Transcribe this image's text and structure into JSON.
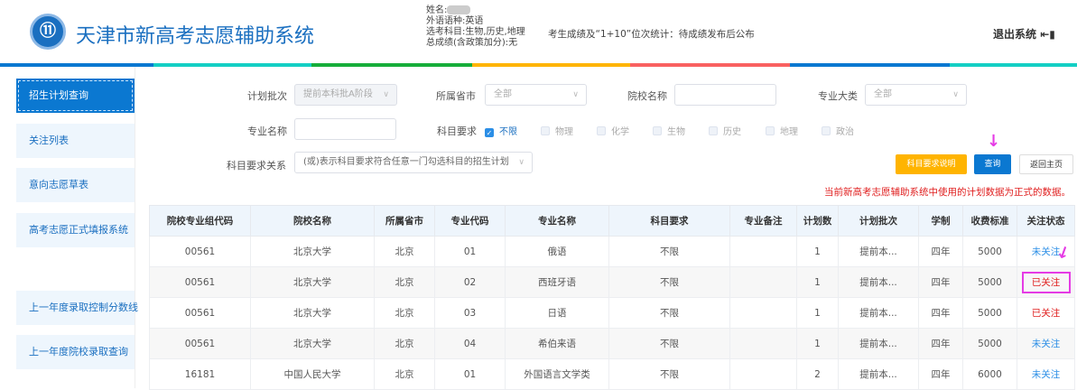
{
  "header": {
    "logo_text": "TAEA",
    "title": "天津市新高考志愿辅助系统",
    "student": {
      "name_label": "姓名:",
      "foreign_language": "外语语种:英语",
      "subjects": "选考科目:生物,历史,地理",
      "total_score": "总成绩(含政策加分):无"
    },
    "rank_stat": "考生成绩及“1+10”位次统计：待成绩发布后公布",
    "logout_label": "退出系统",
    "logout_icon": "exit-door-icon"
  },
  "color_bar": [
    "#0b78d1",
    "#14cfc4",
    "#17ad3a",
    "#ffb400",
    "#f96161",
    "#0b78d1",
    "#14cfc4"
  ],
  "sidebar": {
    "items": [
      {
        "label": "招生计划查询",
        "active": true
      },
      {
        "label": "关注列表"
      },
      {
        "label": "意向志愿草表"
      },
      {
        "label": "高考志愿正式填报系统"
      },
      {
        "label": "上一年度录取控制分数线"
      },
      {
        "label": "上一年度院校录取查询"
      }
    ]
  },
  "filters": {
    "batch": {
      "label": "计划批次",
      "value": "提前本科批A阶段"
    },
    "province": {
      "label": "所属省市",
      "value": "全部"
    },
    "school": {
      "label": "院校名称",
      "value": ""
    },
    "category": {
      "label": "专业大类",
      "value": "全部"
    },
    "major": {
      "label": "专业名称",
      "value": ""
    },
    "subject_req": {
      "label": "科目要求",
      "options": [
        {
          "label": "不限",
          "checked": true
        },
        {
          "label": "物理"
        },
        {
          "label": "化学"
        },
        {
          "label": "生物"
        },
        {
          "label": "历史"
        },
        {
          "label": "地理"
        },
        {
          "label": "政治"
        }
      ]
    },
    "relation": {
      "label": "科目要求关系",
      "value": "(或)表示科目要求符合任意一门勾选科目的招生计划"
    }
  },
  "buttons": {
    "explain": "科目要求说明",
    "query": "查询",
    "home": "返回主页"
  },
  "notice": "当前新高考志愿辅助系统中使用的计划数据为正式的数据。",
  "table": {
    "headers": [
      "院校专业组代码",
      "院校名称",
      "所属省市",
      "专业代码",
      "专业名称",
      "科目要求",
      "专业备注",
      "计划数",
      "计划批次",
      "学制",
      "收费标准",
      "关注状态"
    ],
    "rows": [
      [
        "00561",
        "北京大学",
        "北京",
        "01",
        "俄语",
        "不限",
        "",
        "1",
        "提前本...",
        "四年",
        "5000",
        "未关注"
      ],
      [
        "00561",
        "北京大学",
        "北京",
        "02",
        "西班牙语",
        "不限",
        "",
        "1",
        "提前本...",
        "四年",
        "5000",
        "已关注"
      ],
      [
        "00561",
        "北京大学",
        "北京",
        "03",
        "日语",
        "不限",
        "",
        "1",
        "提前本...",
        "四年",
        "5000",
        "已关注"
      ],
      [
        "00561",
        "北京大学",
        "北京",
        "04",
        "希伯来语",
        "不限",
        "",
        "1",
        "提前本...",
        "四年",
        "5000",
        "未关注"
      ],
      [
        "16181",
        "中国人民大学",
        "北京",
        "01",
        "外国语言文学类",
        "不限",
        "",
        "2",
        "提前本...",
        "四年",
        "6000",
        "未关注"
      ]
    ]
  },
  "colors": {
    "primary": "#0b78d1",
    "followed": "#e02020",
    "unfollowed": "#2b8ee6",
    "explain_button": "#ffb400",
    "annotation": "#e53be5"
  }
}
